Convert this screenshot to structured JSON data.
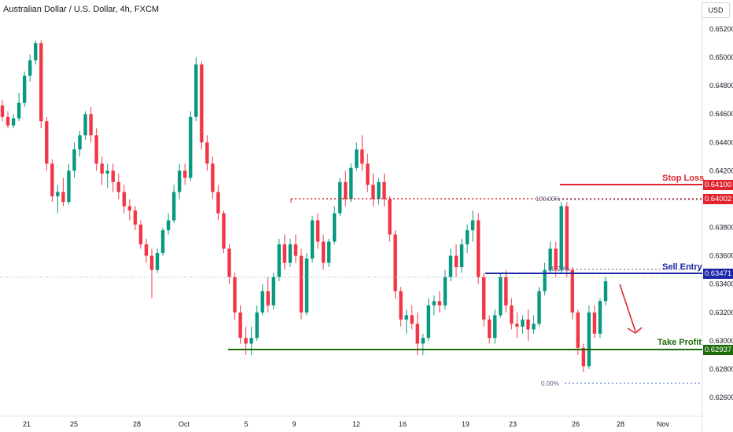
{
  "header": {
    "title": "Australian Dollar / U.S. Dollar, 4h, FXCM",
    "currency_button": "USD"
  },
  "annotations": {
    "stop_loss": {
      "label": "Stop Loss",
      "value": "0.64100",
      "price": 0.641,
      "color": "#e0242d"
    },
    "entry_zone": {
      "value": "0.64002",
      "price": 0.64002,
      "color": "#e0242d"
    },
    "sell_entry": {
      "label": "Sell Entry",
      "value": "0.63471",
      "price": 0.63471,
      "color": "#1c27a8"
    },
    "take_profit": {
      "label": "Take Profit",
      "value": "0.62937",
      "price": 0.62937,
      "color": "#1d6b0a"
    },
    "fib_100": "100.00%",
    "fib_0": "0.00%",
    "fib_mid": "38.20%"
  },
  "chart_data": {
    "type": "candlestick",
    "y_ticks": [
      "0.65200",
      "0.65000",
      "0.64800",
      "0.64600",
      "0.64400",
      "0.64200",
      "0.64000",
      "0.63800",
      "0.63600",
      "0.63400",
      "0.63200",
      "0.63000",
      "0.62800",
      "0.62600"
    ],
    "x_ticks": [
      "21",
      "25",
      "28",
      "Oct",
      "5",
      "9",
      "12",
      "16",
      "19",
      "23",
      "26",
      "28",
      "Nov"
    ],
    "ylim": [
      0.6258,
      0.653
    ],
    "colors": {
      "up": "#089981",
      "down": "#f23645"
    },
    "candles": [
      [
        0.6466,
        0.647,
        0.6455,
        0.6458
      ],
      [
        0.6458,
        0.6462,
        0.645,
        0.6452
      ],
      [
        0.6452,
        0.646,
        0.645,
        0.6457
      ],
      [
        0.6457,
        0.6475,
        0.6455,
        0.6468
      ],
      [
        0.6468,
        0.649,
        0.6465,
        0.6487
      ],
      [
        0.6487,
        0.6502,
        0.6483,
        0.6498
      ],
      [
        0.6498,
        0.6512,
        0.6495,
        0.651
      ],
      [
        0.651,
        0.6512,
        0.645,
        0.6455
      ],
      [
        0.6455,
        0.6458,
        0.642,
        0.6425
      ],
      [
        0.6425,
        0.6428,
        0.6398,
        0.6402
      ],
      [
        0.6402,
        0.641,
        0.639,
        0.6405
      ],
      [
        0.6405,
        0.6415,
        0.6395,
        0.6398
      ],
      [
        0.6398,
        0.6425,
        0.6396,
        0.642
      ],
      [
        0.642,
        0.644,
        0.6415,
        0.6435
      ],
      [
        0.6435,
        0.6448,
        0.643,
        0.6445
      ],
      [
        0.6445,
        0.6462,
        0.6442,
        0.646
      ],
      [
        0.646,
        0.6465,
        0.644,
        0.6445
      ],
      [
        0.6445,
        0.645,
        0.642,
        0.6425
      ],
      [
        0.6425,
        0.643,
        0.641,
        0.6418
      ],
      [
        0.6418,
        0.6425,
        0.6408,
        0.642
      ],
      [
        0.642,
        0.6425,
        0.6405,
        0.6412
      ],
      [
        0.6412,
        0.6418,
        0.64,
        0.6405
      ],
      [
        0.6405,
        0.641,
        0.639,
        0.6395
      ],
      [
        0.6395,
        0.64,
        0.6385,
        0.6392
      ],
      [
        0.6392,
        0.6395,
        0.6378,
        0.6382
      ],
      [
        0.6382,
        0.6385,
        0.6365,
        0.6368
      ],
      [
        0.6368,
        0.6372,
        0.6355,
        0.636
      ],
      [
        0.636,
        0.6365,
        0.633,
        0.635
      ],
      [
        0.635,
        0.6365,
        0.6348,
        0.6362
      ],
      [
        0.6362,
        0.638,
        0.636,
        0.6378
      ],
      [
        0.6378,
        0.639,
        0.6375,
        0.6385
      ],
      [
        0.6385,
        0.641,
        0.6383,
        0.6405
      ],
      [
        0.6405,
        0.6425,
        0.64,
        0.642
      ],
      [
        0.642,
        0.6425,
        0.641,
        0.6415
      ],
      [
        0.6415,
        0.6462,
        0.6413,
        0.6458
      ],
      [
        0.6458,
        0.65,
        0.6455,
        0.6495
      ],
      [
        0.6495,
        0.6497,
        0.6435,
        0.644
      ],
      [
        0.644,
        0.6445,
        0.642,
        0.6425
      ],
      [
        0.6425,
        0.643,
        0.64,
        0.6405
      ],
      [
        0.6405,
        0.641,
        0.6385,
        0.639
      ],
      [
        0.639,
        0.6392,
        0.6362,
        0.6365
      ],
      [
        0.6365,
        0.6368,
        0.634,
        0.6345
      ],
      [
        0.6345,
        0.6348,
        0.6315,
        0.632
      ],
      [
        0.632,
        0.6325,
        0.6298,
        0.6302
      ],
      [
        0.6302,
        0.631,
        0.629,
        0.6298
      ],
      [
        0.6298,
        0.631,
        0.629,
        0.6302
      ],
      [
        0.6302,
        0.6325,
        0.63,
        0.632
      ],
      [
        0.632,
        0.634,
        0.6318,
        0.6335
      ],
      [
        0.6335,
        0.6345,
        0.632,
        0.6325
      ],
      [
        0.6325,
        0.6348,
        0.6322,
        0.6345
      ],
      [
        0.6345,
        0.6372,
        0.6342,
        0.6368
      ],
      [
        0.6368,
        0.6375,
        0.635,
        0.6355
      ],
      [
        0.6355,
        0.6372,
        0.6352,
        0.6368
      ],
      [
        0.6368,
        0.6375,
        0.6355,
        0.636
      ],
      [
        0.636,
        0.6365,
        0.6315,
        0.632
      ],
      [
        0.632,
        0.6362,
        0.6318,
        0.6358
      ],
      [
        0.6358,
        0.6388,
        0.6355,
        0.6385
      ],
      [
        0.6385,
        0.639,
        0.6365,
        0.637
      ],
      [
        0.637,
        0.6375,
        0.635,
        0.6355
      ],
      [
        0.6355,
        0.6372,
        0.6352,
        0.637
      ],
      [
        0.637,
        0.6395,
        0.6368,
        0.639
      ],
      [
        0.639,
        0.6415,
        0.6388,
        0.6412
      ],
      [
        0.6412,
        0.642,
        0.6395,
        0.64
      ],
      [
        0.64,
        0.6425,
        0.6398,
        0.6422
      ],
      [
        0.6422,
        0.644,
        0.642,
        0.6435
      ],
      [
        0.6435,
        0.6445,
        0.642,
        0.6425
      ],
      [
        0.6425,
        0.6432,
        0.6405,
        0.641
      ],
      [
        0.641,
        0.6418,
        0.6395,
        0.64
      ],
      [
        0.64,
        0.6415,
        0.6396,
        0.6412
      ],
      [
        0.6412,
        0.6418,
        0.6395,
        0.64
      ],
      [
        0.64,
        0.6402,
        0.637,
        0.6375
      ],
      [
        0.6375,
        0.6378,
        0.633,
        0.6335
      ],
      [
        0.6335,
        0.6338,
        0.631,
        0.6315
      ],
      [
        0.6315,
        0.6322,
        0.6305,
        0.6318
      ],
      [
        0.6318,
        0.6325,
        0.6308,
        0.6312
      ],
      [
        0.6312,
        0.632,
        0.629,
        0.6298
      ],
      [
        0.6298,
        0.6305,
        0.629,
        0.6302
      ],
      [
        0.6302,
        0.633,
        0.63,
        0.6325
      ],
      [
        0.6325,
        0.6332,
        0.6318,
        0.6328
      ],
      [
        0.6328,
        0.6335,
        0.632,
        0.6325
      ],
      [
        0.6325,
        0.635,
        0.6322,
        0.6345
      ],
      [
        0.6345,
        0.6365,
        0.6342,
        0.636
      ],
      [
        0.636,
        0.6368,
        0.6345,
        0.6352
      ],
      [
        0.6352,
        0.6372,
        0.6348,
        0.6368
      ],
      [
        0.6368,
        0.6382,
        0.6362,
        0.6378
      ],
      [
        0.6378,
        0.6392,
        0.637,
        0.6385
      ],
      [
        0.6385,
        0.639,
        0.634,
        0.6345
      ],
      [
        0.6345,
        0.6348,
        0.631,
        0.6315
      ],
      [
        0.6315,
        0.6318,
        0.6298,
        0.6302
      ],
      [
        0.6302,
        0.6322,
        0.6298,
        0.6318
      ],
      [
        0.6318,
        0.6348,
        0.6316,
        0.6345
      ],
      [
        0.6345,
        0.635,
        0.632,
        0.6325
      ],
      [
        0.6325,
        0.633,
        0.6308,
        0.6312
      ],
      [
        0.6312,
        0.632,
        0.6302,
        0.631
      ],
      [
        0.631,
        0.6318,
        0.6305,
        0.6315
      ],
      [
        0.6315,
        0.6322,
        0.63,
        0.6308
      ],
      [
        0.6308,
        0.6318,
        0.6305,
        0.6312
      ],
      [
        0.6312,
        0.6338,
        0.631,
        0.6335
      ],
      [
        0.6335,
        0.6355,
        0.6332,
        0.635
      ],
      [
        0.635,
        0.637,
        0.6348,
        0.6365
      ],
      [
        0.6365,
        0.637,
        0.6345,
        0.635
      ],
      [
        0.635,
        0.6398,
        0.6348,
        0.6395
      ],
      [
        0.6395,
        0.6398,
        0.6345,
        0.635
      ],
      [
        0.635,
        0.6352,
        0.6315,
        0.632
      ],
      [
        0.632,
        0.6322,
        0.629,
        0.6295
      ],
      [
        0.6295,
        0.6298,
        0.6278,
        0.6282
      ],
      [
        0.6282,
        0.6325,
        0.628,
        0.632
      ],
      [
        0.632,
        0.6325,
        0.6302,
        0.6305
      ],
      [
        0.6305,
        0.633,
        0.6302,
        0.6328
      ],
      [
        0.6328,
        0.6345,
        0.6325,
        0.6342
      ]
    ]
  }
}
